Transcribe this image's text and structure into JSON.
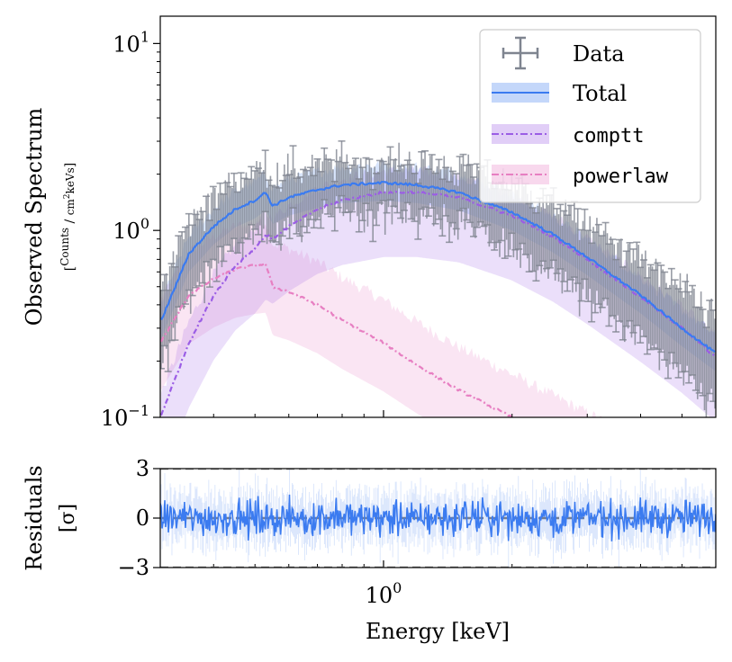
{
  "chart_data": [
    {
      "type": "line",
      "panel": "spectrum",
      "ylabel": "Observed Spectrum",
      "ylabel_units": "[Counts / cm²keVs]",
      "yscale": "log",
      "xscale": "log",
      "xlim": [
        0.3,
        6.0
      ],
      "ylim": [
        0.1,
        14.0
      ],
      "ytick_labels": [
        {
          "value": 0.1,
          "base": "10",
          "exp": "−1"
        },
        {
          "value": 1.0,
          "base": "10",
          "exp": "0"
        },
        {
          "value": 10.0,
          "base": "10",
          "exp": "1"
        }
      ],
      "legend_position": "upper right",
      "series": [
        {
          "name": "Data",
          "style": "errorbar",
          "color": "#7f8590",
          "x": [
            0.3,
            0.35,
            0.4,
            0.45,
            0.5,
            0.53,
            0.55,
            0.6,
            0.7,
            0.8,
            1.0,
            1.2,
            1.5,
            2.0,
            2.5,
            3.0,
            4.0,
            5.0,
            6.0
          ],
          "y": [
            0.32,
            0.75,
            1.05,
            1.3,
            1.45,
            1.6,
            1.35,
            1.5,
            1.65,
            1.75,
            1.8,
            1.75,
            1.6,
            1.25,
            0.95,
            0.72,
            0.45,
            0.3,
            0.22
          ]
        },
        {
          "name": "Total",
          "style": "solid",
          "color": "#3b7bf0",
          "x": [
            0.3,
            0.35,
            0.4,
            0.45,
            0.5,
            0.53,
            0.55,
            0.6,
            0.7,
            0.8,
            1.0,
            1.2,
            1.5,
            2.0,
            2.5,
            3.0,
            4.0,
            5.0,
            6.0
          ],
          "y": [
            0.32,
            0.75,
            1.05,
            1.3,
            1.45,
            1.6,
            1.35,
            1.5,
            1.65,
            1.75,
            1.8,
            1.75,
            1.6,
            1.25,
            0.95,
            0.72,
            0.45,
            0.3,
            0.22
          ]
        },
        {
          "name": "comptt",
          "style": "dashdot",
          "color": "#9b5de5",
          "x": [
            0.3,
            0.35,
            0.4,
            0.45,
            0.5,
            0.53,
            0.55,
            0.6,
            0.7,
            0.8,
            1.0,
            1.2,
            1.5,
            2.0,
            2.5,
            3.0,
            4.0,
            5.0,
            6.0
          ],
          "y": [
            0.1,
            0.25,
            0.45,
            0.65,
            0.8,
            0.95,
            0.9,
            1.05,
            1.3,
            1.45,
            1.6,
            1.6,
            1.5,
            1.2,
            0.92,
            0.7,
            0.44,
            0.3,
            0.21
          ]
        },
        {
          "name": "powerlaw",
          "style": "dashdot",
          "color": "#e77fc2",
          "x": [
            0.3,
            0.35,
            0.4,
            0.45,
            0.5,
            0.53,
            0.55,
            0.6,
            0.7,
            0.8,
            1.0,
            1.2,
            1.5,
            2.0
          ],
          "y": [
            0.25,
            0.45,
            0.55,
            0.62,
            0.65,
            0.66,
            0.5,
            0.47,
            0.4,
            0.33,
            0.25,
            0.19,
            0.14,
            0.1
          ]
        }
      ]
    },
    {
      "type": "line",
      "panel": "residuals",
      "title": "",
      "xlabel": "Energy [keV]",
      "ylabel": "Residuals",
      "ylabel_units": "[σ]",
      "xscale": "log",
      "xlim": [
        0.3,
        6.0
      ],
      "ylim": [
        -3.0,
        3.0
      ],
      "ytick_labels": [
        "3",
        "0",
        "−3"
      ],
      "ytick_values": [
        3,
        0,
        -3
      ],
      "xtick_label": {
        "value": 1.0,
        "base": "10",
        "exp": "0"
      },
      "reference_lines": [
        3,
        0,
        -3
      ],
      "series": [
        {
          "name": "Residuals",
          "color": "#3b7bf0",
          "x_range": [
            0.3,
            6.0
          ],
          "scatter_sigma": 1.0
        }
      ]
    }
  ]
}
